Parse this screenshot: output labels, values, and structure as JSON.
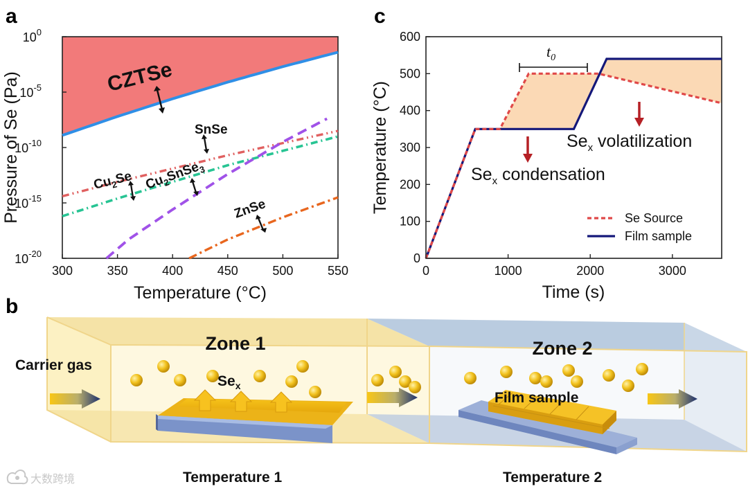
{
  "panel_a": {
    "letter": "a",
    "chart_data": {
      "type": "line",
      "xlabel": "Temperature (°C)",
      "ylabel": "Pressure of Se (Pa)",
      "xlim": [
        300,
        550
      ],
      "ylim_log10": [
        -20,
        0
      ],
      "x_ticks": [
        "300",
        "350",
        "400",
        "450",
        "500",
        "550"
      ],
      "y_ticks": [
        {
          "base": "10",
          "exp": "0"
        },
        {
          "base": "10",
          "exp": "-5"
        },
        {
          "base": "10",
          "exp": "-10"
        },
        {
          "base": "10",
          "exp": "-15"
        },
        {
          "base": "10",
          "exp": "-20"
        }
      ],
      "series": [
        {
          "name": "CZTSe",
          "color": "#2f8fe6",
          "x": [
            300,
            350,
            400,
            450,
            500,
            550
          ],
          "log10_p": [
            -8.9,
            -7.2,
            -5.6,
            -4.1,
            -2.7,
            -1.4
          ]
        },
        {
          "name": "SnSe",
          "color": "#e06060",
          "x": [
            300,
            350,
            400,
            450,
            500,
            550
          ],
          "log10_p": [
            -14.4,
            -13.1,
            -11.9,
            -10.7,
            -9.6,
            -8.5
          ]
        },
        {
          "name": "Cu2SnSe3",
          "color": "#27c493",
          "x": [
            300,
            350,
            400,
            450,
            500,
            550
          ],
          "log10_p": [
            -16.2,
            -14.6,
            -13.1,
            -11.6,
            -10.3,
            -9.0
          ]
        },
        {
          "name": "Cu2Se",
          "color": "#a052e8",
          "x": [
            340,
            360,
            400,
            450,
            500,
            540
          ],
          "log10_p": [
            -20,
            -18.3,
            -15.6,
            -12.4,
            -9.5,
            -7.4
          ]
        },
        {
          "name": "ZnSe",
          "color": "#e8661e",
          "x": [
            415,
            450,
            500,
            550
          ],
          "log10_p": [
            -20,
            -18.3,
            -16.3,
            -14.5
          ]
        }
      ]
    },
    "labels": {
      "czts": "CZTSe",
      "snse": "SnSe",
      "cu2se_a": "Cu",
      "cu2se_sub": "2",
      "cu2se_b": "Se",
      "cts_a": "Cu",
      "cts_sub1": "2",
      "cts_b": "SnSe",
      "cts_sub2": "3",
      "znse": "ZnSe"
    }
  },
  "panel_c": {
    "letter": "c",
    "chart_data": {
      "type": "line",
      "xlabel": "Time (s)",
      "ylabel": "Temperature (°C)",
      "xlim": [
        0,
        3600
      ],
      "ylim": [
        0,
        600
      ],
      "x_ticks": [
        "0",
        "1000",
        "2000",
        "3000"
      ],
      "y_ticks": [
        "0",
        "100",
        "200",
        "300",
        "400",
        "500",
        "600"
      ],
      "series": [
        {
          "name": "Se Source",
          "color": "#e04848",
          "x": [
            0,
            600,
            900,
            1250,
            2100,
            3600
          ],
          "y": [
            0,
            350,
            350,
            500,
            500,
            420
          ]
        },
        {
          "name": "Film sample",
          "color": "#14187a",
          "x": [
            0,
            600,
            1800,
            2200,
            3600
          ],
          "y": [
            0,
            350,
            350,
            540,
            540
          ]
        }
      ],
      "shade_color": "#fbd9b5",
      "annotations": {
        "t0_base": "t",
        "t0_sub": "0",
        "condensation_a": "Se",
        "condensation_sub": "x",
        "condensation_b": " condensation",
        "volatilization_a": "Se",
        "volatilization_sub": "x",
        "volatilization_b": " volatilization"
      },
      "legend": [
        "Se Source",
        "Film sample"
      ]
    }
  },
  "panel_b": {
    "letter": "b",
    "zone1": "Zone 1",
    "zone2": "Zone 2",
    "carrier_gas": "Carrier gas",
    "sex_a": "Se",
    "sex_sub": "x",
    "film_sample": "Film sample",
    "temperature1": "Temperature 1",
    "temperature2": "Temperature 2"
  },
  "watermark": "大数跨境"
}
